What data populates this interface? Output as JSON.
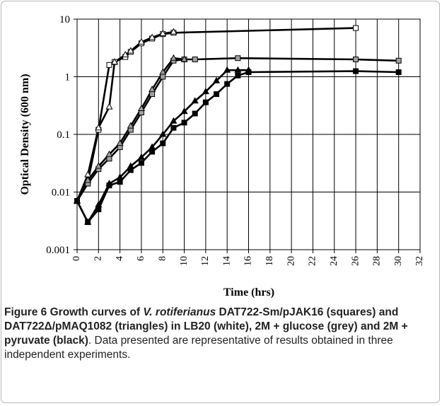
{
  "caption": {
    "label": "Figure 6",
    "title_1": "Growth curves of",
    "title_italic": "V. rotiferianus",
    "title_2": "DAT722-Sm/pJAK16 (squares) and DAT722Δ/pMAQ1082 (triangles) in LB20 (white), 2M + glucose (grey) and 2M + pyruvate (black)",
    "title_end": ".",
    "body": "Data presented are representative of results obtained in three independent experiments."
  },
  "chart_data": {
    "type": "line",
    "xlabel": "Time (hrs)",
    "ylabel": "Optical Density (600 nm)",
    "xlim": [
      0,
      32
    ],
    "ylim": [
      0.001,
      10
    ],
    "yscale": "log",
    "xticks": [
      0,
      2,
      4,
      6,
      8,
      10,
      12,
      14,
      16,
      18,
      20,
      22,
      24,
      26,
      28,
      30,
      32
    ],
    "yticks": [
      0.001,
      0.01,
      0.1,
      1,
      10
    ],
    "ytick_labels": [
      "0.001",
      "0.01",
      "0.1",
      "1",
      "10"
    ],
    "grid": true,
    "series": [
      {
        "marker": "square",
        "fill": "#ffffff",
        "x": [
          0,
          1,
          2,
          3,
          3.5,
          4.5,
          5,
          6,
          7,
          8,
          9,
          26
        ],
        "y": [
          0.007,
          0.015,
          0.12,
          1.6,
          1.8,
          2.2,
          2.7,
          3.8,
          4.6,
          5.5,
          5.8,
          7.0
        ]
      },
      {
        "marker": "triangle",
        "fill": "#ffffff",
        "x": [
          0,
          1,
          2,
          3,
          3.5,
          4.5,
          5,
          6,
          7,
          8,
          9
        ],
        "y": [
          0.007,
          0.02,
          0.13,
          0.3,
          1.8,
          2.4,
          2.8,
          4.0,
          4.8,
          5.6,
          6.0
        ]
      },
      {
        "marker": "square",
        "fill": "#a0a0a0",
        "x": [
          0,
          1,
          2,
          3,
          4,
          5,
          6,
          7,
          8,
          9,
          10,
          11,
          15,
          26,
          30
        ],
        "y": [
          0.007,
          0.014,
          0.025,
          0.038,
          0.06,
          0.12,
          0.24,
          0.5,
          1.0,
          1.9,
          2.0,
          2.0,
          2.1,
          2.0,
          1.9
        ]
      },
      {
        "marker": "triangle",
        "fill": "#a0a0a0",
        "x": [
          0,
          1,
          2,
          3,
          4,
          5,
          6,
          7,
          8,
          9,
          10
        ],
        "y": [
          0.007,
          0.016,
          0.028,
          0.045,
          0.07,
          0.14,
          0.28,
          0.6,
          1.2,
          2.1,
          2.0
        ]
      },
      {
        "marker": "square",
        "fill": "#000000",
        "x": [
          0,
          1,
          2,
          3,
          4,
          5,
          6,
          7,
          8,
          9,
          10,
          11,
          12,
          13,
          14,
          15,
          16,
          26,
          30
        ],
        "y": [
          0.007,
          0.003,
          0.005,
          0.013,
          0.015,
          0.024,
          0.032,
          0.05,
          0.07,
          0.13,
          0.16,
          0.23,
          0.36,
          0.5,
          0.75,
          1.05,
          1.2,
          1.25,
          1.2
        ]
      },
      {
        "marker": "triangle",
        "fill": "#000000",
        "x": [
          0,
          1,
          2,
          3,
          4,
          5,
          6,
          7,
          8,
          9,
          10,
          11,
          12,
          13,
          14,
          15,
          16
        ],
        "y": [
          0.007,
          0.003,
          0.006,
          0.014,
          0.018,
          0.028,
          0.04,
          0.06,
          0.1,
          0.17,
          0.25,
          0.38,
          0.55,
          0.85,
          1.3,
          1.3,
          1.3
        ]
      }
    ]
  }
}
